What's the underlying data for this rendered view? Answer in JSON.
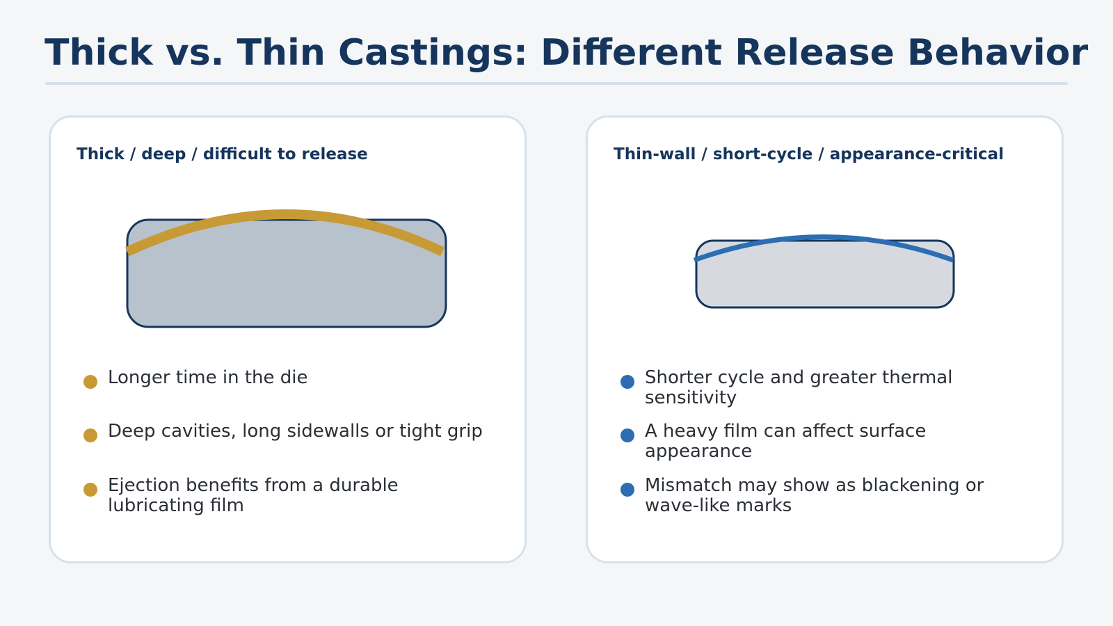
{
  "title": "Thick vs. Thin Castings: Different Release Behavior",
  "colors": {
    "title": "#16355c",
    "panel_border": "#d7e1ec",
    "thick_accent": "#c89a35",
    "thin_accent": "#2c6db3",
    "part_outline": "#16355c",
    "thick_part_fill": "#b8c2cc",
    "thin_part_fill": "#d6dae0"
  },
  "panels": {
    "thick": {
      "heading": "Thick / deep / difficult to release",
      "accent_icon": "thick-film-arc",
      "bullets": [
        "Longer time in the die",
        "Deep cavities, long sidewalls or tight grip",
        "Ejection benefits from a durable lubricating film"
      ]
    },
    "thin": {
      "heading": "Thin-wall / short-cycle / appearance-critical",
      "accent_icon": "thin-film-arc",
      "bullets": [
        "Shorter cycle and greater thermal sensitivity",
        "A heavy film can affect surface appearance",
        "Mismatch may show as blackening or wave-like marks"
      ]
    }
  }
}
